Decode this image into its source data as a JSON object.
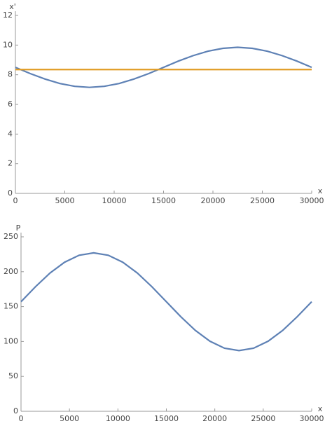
{
  "chart_data": [
    {
      "type": "line",
      "y_label": "x'",
      "x_label": "x",
      "x": [
        0,
        1500,
        3000,
        4500,
        6000,
        7500,
        9000,
        10500,
        12000,
        13500,
        15000,
        16500,
        18000,
        19500,
        21000,
        22500,
        24000,
        25500,
        27000,
        28500,
        30000
      ],
      "series": [
        {
          "color": "#5e81b5",
          "values": [
            8.5,
            8.08,
            7.71,
            7.41,
            7.22,
            7.15,
            7.22,
            7.41,
            7.71,
            8.08,
            8.5,
            8.92,
            9.29,
            9.59,
            9.78,
            9.85,
            9.78,
            9.59,
            9.29,
            8.92,
            8.5
          ]
        },
        {
          "color": "#e19c24",
          "values": [
            8.35,
            8.35,
            8.35,
            8.35,
            8.35,
            8.35,
            8.35,
            8.35,
            8.35,
            8.35,
            8.35,
            8.35,
            8.35,
            8.35,
            8.35,
            8.35,
            8.35,
            8.35,
            8.35,
            8.35,
            8.35
          ]
        }
      ],
      "xlim": [
        0,
        30000
      ],
      "xticks": [
        0,
        5000,
        10000,
        15000,
        20000,
        25000,
        30000
      ],
      "ylim": [
        0,
        12
      ],
      "yticks": [
        0,
        2,
        4,
        6,
        8,
        10,
        12
      ]
    },
    {
      "type": "line",
      "y_label": "P",
      "x_label": "x",
      "x": [
        0,
        1500,
        3000,
        4500,
        6000,
        7500,
        9000,
        10500,
        12000,
        13500,
        15000,
        16500,
        18000,
        19500,
        21000,
        22500,
        24000,
        25500,
        27000,
        28500,
        30000
      ],
      "series": [
        {
          "color": "#5e81b5",
          "values": [
            157,
            178.6,
            198.2,
            213.6,
            223.6,
            227,
            223.6,
            213.6,
            198.2,
            178.6,
            157,
            135.4,
            115.8,
            100.4,
            90.4,
            87,
            90.4,
            100.4,
            115.8,
            135.4,
            157
          ]
        }
      ],
      "xlim": [
        0,
        30000
      ],
      "xticks": [
        0,
        5000,
        10000,
        15000,
        20000,
        25000,
        30000
      ],
      "ylim": [
        0,
        250
      ],
      "yticks": [
        0,
        50,
        100,
        150,
        200,
        250
      ]
    }
  ]
}
